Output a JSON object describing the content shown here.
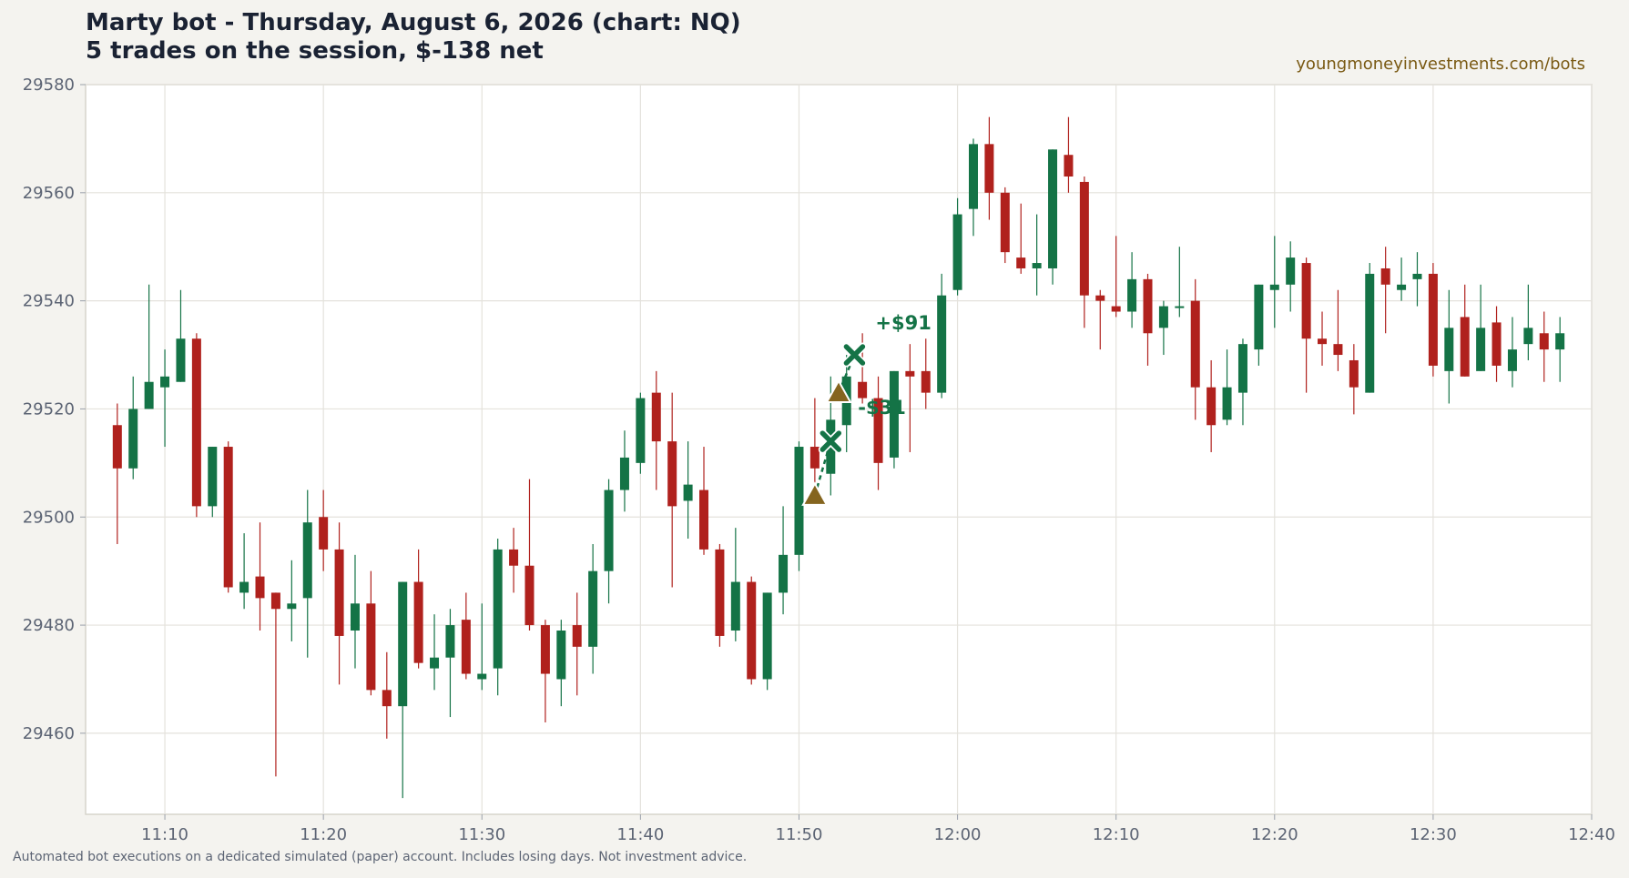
{
  "header": {
    "title_line1": "Marty bot - Thursday, August 6, 2026 (chart: NQ)",
    "title_line2": "5 trades on the session, $-138 net",
    "site": "youngmoneyinvestments.com/bots"
  },
  "footer": {
    "disclaimer": "Automated bot executions on a dedicated simulated (paper) account. Includes losing days. Not investment advice."
  },
  "colors": {
    "up": "#147346",
    "down": "#b0211d",
    "entry_marker": "#85651f",
    "exit_marker": "#147346",
    "grid": "#e4e2dc",
    "background": "#ffffff"
  },
  "chart_data": {
    "type": "candlestick",
    "title": "Marty bot - Thursday, August 6, 2026 (chart: NQ)",
    "xlabel": "",
    "ylabel": "",
    "grid": true,
    "x_unit": "time of day",
    "x_range": [
      "11:05",
      "12:40"
    ],
    "ylim": [
      29445,
      29580
    ],
    "y_ticks": [
      29460,
      29480,
      29500,
      29520,
      29540,
      29560,
      29580
    ],
    "x_ticks": [
      "11:10",
      "11:20",
      "11:30",
      "11:40",
      "11:50",
      "12:00",
      "12:10",
      "12:20",
      "12:30",
      "12:40"
    ],
    "candles": [
      {
        "t": "11:07",
        "o": 29517,
        "h": 29521,
        "l": 29495,
        "c": 29509
      },
      {
        "t": "11:08",
        "o": 29509,
        "h": 29526,
        "l": 29507,
        "c": 29520
      },
      {
        "t": "11:09",
        "o": 29520,
        "h": 29543,
        "l": 29520,
        "c": 29525
      },
      {
        "t": "11:10",
        "o": 29524,
        "h": 29531,
        "l": 29513,
        "c": 29526
      },
      {
        "t": "11:11",
        "o": 29525,
        "h": 29542,
        "l": 29525,
        "c": 29533
      },
      {
        "t": "11:12",
        "o": 29533,
        "h": 29534,
        "l": 29500,
        "c": 29502
      },
      {
        "t": "11:13",
        "o": 29502,
        "h": 29513,
        "l": 29500,
        "c": 29513
      },
      {
        "t": "11:14",
        "o": 29513,
        "h": 29514,
        "l": 29486,
        "c": 29487
      },
      {
        "t": "11:15",
        "o": 29486,
        "h": 29497,
        "l": 29483,
        "c": 29488
      },
      {
        "t": "11:16",
        "o": 29489,
        "h": 29499,
        "l": 29479,
        "c": 29485
      },
      {
        "t": "11:17",
        "o": 29486,
        "h": 29486,
        "l": 29452,
        "c": 29483
      },
      {
        "t": "11:18",
        "o": 29483,
        "h": 29492,
        "l": 29477,
        "c": 29484
      },
      {
        "t": "11:19",
        "o": 29485,
        "h": 29505,
        "l": 29474,
        "c": 29499
      },
      {
        "t": "11:20",
        "o": 29500,
        "h": 29505,
        "l": 29490,
        "c": 29494
      },
      {
        "t": "11:21",
        "o": 29494,
        "h": 29499,
        "l": 29469,
        "c": 29478
      },
      {
        "t": "11:22",
        "o": 29479,
        "h": 29493,
        "l": 29472,
        "c": 29484
      },
      {
        "t": "11:23",
        "o": 29484,
        "h": 29490,
        "l": 29467,
        "c": 29468
      },
      {
        "t": "11:24",
        "o": 29468,
        "h": 29475,
        "l": 29459,
        "c": 29465
      },
      {
        "t": "11:25",
        "o": 29465,
        "h": 29488,
        "l": 29448,
        "c": 29488
      },
      {
        "t": "11:26",
        "o": 29488,
        "h": 29494,
        "l": 29472,
        "c": 29473
      },
      {
        "t": "11:27",
        "o": 29472,
        "h": 29482,
        "l": 29468,
        "c": 29474
      },
      {
        "t": "11:28",
        "o": 29474,
        "h": 29483,
        "l": 29463,
        "c": 29480
      },
      {
        "t": "11:29",
        "o": 29481,
        "h": 29486,
        "l": 29470,
        "c": 29471
      },
      {
        "t": "11:30",
        "o": 29470,
        "h": 29484,
        "l": 29468,
        "c": 29471
      },
      {
        "t": "11:31",
        "o": 29472,
        "h": 29496,
        "l": 29467,
        "c": 29494
      },
      {
        "t": "11:32",
        "o": 29494,
        "h": 29498,
        "l": 29486,
        "c": 29491
      },
      {
        "t": "11:33",
        "o": 29491,
        "h": 29507,
        "l": 29479,
        "c": 29480
      },
      {
        "t": "11:34",
        "o": 29480,
        "h": 29481,
        "l": 29462,
        "c": 29471
      },
      {
        "t": "11:35",
        "o": 29470,
        "h": 29481,
        "l": 29465,
        "c": 29479
      },
      {
        "t": "11:36",
        "o": 29480,
        "h": 29486,
        "l": 29467,
        "c": 29476
      },
      {
        "t": "11:37",
        "o": 29476,
        "h": 29495,
        "l": 29471,
        "c": 29490
      },
      {
        "t": "11:38",
        "o": 29490,
        "h": 29507,
        "l": 29484,
        "c": 29505
      },
      {
        "t": "11:39",
        "o": 29505,
        "h": 29516,
        "l": 29501,
        "c": 29511
      },
      {
        "t": "11:40",
        "o": 29510,
        "h": 29523,
        "l": 29508,
        "c": 29522
      },
      {
        "t": "11:41",
        "o": 29523,
        "h": 29527,
        "l": 29505,
        "c": 29514
      },
      {
        "t": "11:42",
        "o": 29514,
        "h": 29523,
        "l": 29487,
        "c": 29502
      },
      {
        "t": "11:43",
        "o": 29503,
        "h": 29514,
        "l": 29496,
        "c": 29506
      },
      {
        "t": "11:44",
        "o": 29505,
        "h": 29513,
        "l": 29493,
        "c": 29494
      },
      {
        "t": "11:45",
        "o": 29494,
        "h": 29495,
        "l": 29476,
        "c": 29478
      },
      {
        "t": "11:46",
        "o": 29479,
        "h": 29498,
        "l": 29477,
        "c": 29488
      },
      {
        "t": "11:47",
        "o": 29488,
        "h": 29489,
        "l": 29469,
        "c": 29470
      },
      {
        "t": "11:48",
        "o": 29470,
        "h": 29486,
        "l": 29468,
        "c": 29486
      },
      {
        "t": "11:49",
        "o": 29486,
        "h": 29502,
        "l": 29482,
        "c": 29493
      },
      {
        "t": "11:50",
        "o": 29493,
        "h": 29514,
        "l": 29490,
        "c": 29513
      },
      {
        "t": "11:51",
        "o": 29513,
        "h": 29522,
        "l": 29505,
        "c": 29509
      },
      {
        "t": "11:52",
        "o": 29508,
        "h": 29526,
        "l": 29504,
        "c": 29518
      },
      {
        "t": "11:53",
        "o": 29517,
        "h": 29530,
        "l": 29512,
        "c": 29526
      },
      {
        "t": "11:54",
        "o": 29525,
        "h": 29534,
        "l": 29521,
        "c": 29522
      },
      {
        "t": "11:55",
        "o": 29522,
        "h": 29526,
        "l": 29505,
        "c": 29510
      },
      {
        "t": "11:56",
        "o": 29511,
        "h": 29527,
        "l": 29509,
        "c": 29527
      },
      {
        "t": "11:57",
        "o": 29527,
        "h": 29532,
        "l": 29512,
        "c": 29526
      },
      {
        "t": "11:58",
        "o": 29527,
        "h": 29533,
        "l": 29520,
        "c": 29523
      },
      {
        "t": "11:59",
        "o": 29523,
        "h": 29545,
        "l": 29522,
        "c": 29541
      },
      {
        "t": "12:00",
        "o": 29542,
        "h": 29559,
        "l": 29541,
        "c": 29556
      },
      {
        "t": "12:01",
        "o": 29557,
        "h": 29570,
        "l": 29552,
        "c": 29569
      },
      {
        "t": "12:02",
        "o": 29569,
        "h": 29574,
        "l": 29555,
        "c": 29560
      },
      {
        "t": "12:03",
        "o": 29560,
        "h": 29561,
        "l": 29547,
        "c": 29549
      },
      {
        "t": "12:04",
        "o": 29548,
        "h": 29558,
        "l": 29545,
        "c": 29546
      },
      {
        "t": "12:05",
        "o": 29546,
        "h": 29556,
        "l": 29541,
        "c": 29547
      },
      {
        "t": "12:06",
        "o": 29546,
        "h": 29568,
        "l": 29543,
        "c": 29568
      },
      {
        "t": "12:07",
        "o": 29567,
        "h": 29574,
        "l": 29560,
        "c": 29563
      },
      {
        "t": "12:08",
        "o": 29562,
        "h": 29563,
        "l": 29535,
        "c": 29541
      },
      {
        "t": "12:09",
        "o": 29541,
        "h": 29542,
        "l": 29531,
        "c": 29540
      },
      {
        "t": "12:10",
        "o": 29539,
        "h": 29552,
        "l": 29537,
        "c": 29538
      },
      {
        "t": "12:11",
        "o": 29538,
        "h": 29549,
        "l": 29535,
        "c": 29544
      },
      {
        "t": "12:12",
        "o": 29544,
        "h": 29545,
        "l": 29528,
        "c": 29534
      },
      {
        "t": "12:13",
        "o": 29535,
        "h": 29540,
        "l": 29530,
        "c": 29539
      },
      {
        "t": "12:14",
        "o": 29539,
        "h": 29550,
        "l": 29537,
        "c": 29539
      },
      {
        "t": "12:15",
        "o": 29540,
        "h": 29544,
        "l": 29518,
        "c": 29524
      },
      {
        "t": "12:16",
        "o": 29524,
        "h": 29529,
        "l": 29512,
        "c": 29517
      },
      {
        "t": "12:17",
        "o": 29518,
        "h": 29531,
        "l": 29517,
        "c": 29524
      },
      {
        "t": "12:18",
        "o": 29523,
        "h": 29533,
        "l": 29517,
        "c": 29532
      },
      {
        "t": "12:19",
        "o": 29531,
        "h": 29543,
        "l": 29528,
        "c": 29543
      },
      {
        "t": "12:20",
        "o": 29542,
        "h": 29552,
        "l": 29535,
        "c": 29543
      },
      {
        "t": "12:21",
        "o": 29543,
        "h": 29551,
        "l": 29538,
        "c": 29548
      },
      {
        "t": "12:22",
        "o": 29547,
        "h": 29548,
        "l": 29523,
        "c": 29533
      },
      {
        "t": "12:23",
        "o": 29533,
        "h": 29538,
        "l": 29528,
        "c": 29532
      },
      {
        "t": "12:24",
        "o": 29532,
        "h": 29542,
        "l": 29527,
        "c": 29530
      },
      {
        "t": "12:25",
        "o": 29529,
        "h": 29532,
        "l": 29519,
        "c": 29524
      },
      {
        "t": "12:26",
        "o": 29523,
        "h": 29547,
        "l": 29523,
        "c": 29545
      },
      {
        "t": "12:27",
        "o": 29546,
        "h": 29550,
        "l": 29534,
        "c": 29543
      },
      {
        "t": "12:28",
        "o": 29542,
        "h": 29548,
        "l": 29540,
        "c": 29543
      },
      {
        "t": "12:29",
        "o": 29544,
        "h": 29549,
        "l": 29539,
        "c": 29545
      },
      {
        "t": "12:30",
        "o": 29545,
        "h": 29547,
        "l": 29526,
        "c": 29528
      },
      {
        "t": "12:31",
        "o": 29527,
        "h": 29542,
        "l": 29521,
        "c": 29535
      },
      {
        "t": "12:32",
        "o": 29537,
        "h": 29543,
        "l": 29526,
        "c": 29526
      },
      {
        "t": "12:33",
        "o": 29527,
        "h": 29543,
        "l": 29527,
        "c": 29535
      },
      {
        "t": "12:34",
        "o": 29536,
        "h": 29539,
        "l": 29525,
        "c": 29528
      },
      {
        "t": "12:35",
        "o": 29527,
        "h": 29537,
        "l": 29524,
        "c": 29531
      },
      {
        "t": "12:36",
        "o": 29532,
        "h": 29543,
        "l": 29529,
        "c": 29535
      },
      {
        "t": "12:37",
        "o": 29534,
        "h": 29538,
        "l": 29525,
        "c": 29531
      },
      {
        "t": "12:38",
        "o": 29531,
        "h": 29537,
        "l": 29525,
        "c": 29534
      }
    ],
    "trades": [
      {
        "entry_t": "11:51",
        "entry_price": 29504,
        "exit_t": "11:52",
        "exit_price": 29514,
        "label": "-$31"
      },
      {
        "entry_t": "11:52.5",
        "entry_price": 29523,
        "exit_t": "11:53.5",
        "exit_price": 29530,
        "label": "+$91"
      }
    ]
  }
}
